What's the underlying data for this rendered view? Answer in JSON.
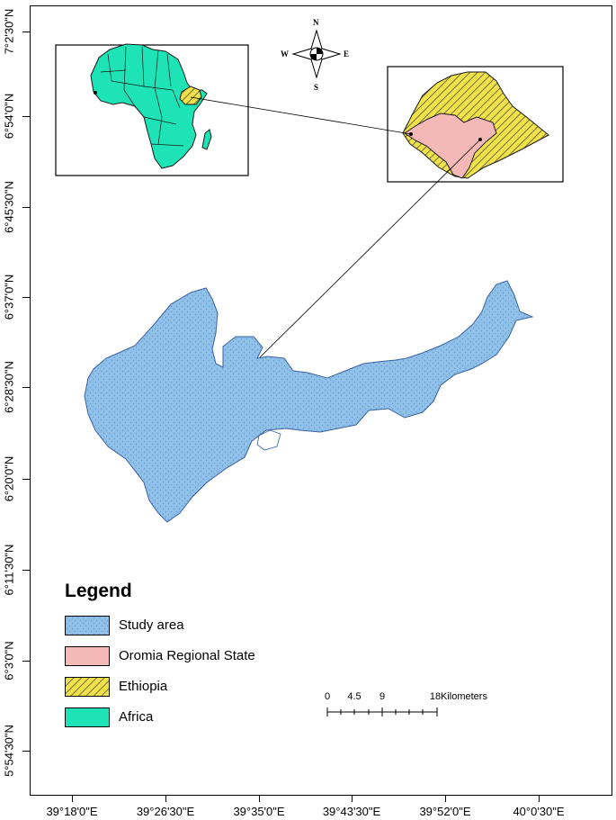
{
  "map": {
    "y_axis_labels": [
      "7°2'30\"N",
      "6°54'0\"N",
      "6°45'30\"N",
      "6°37'0\"N",
      "6°28'30\"N",
      "6°20'0\"N",
      "6°11'30\"N",
      "6°3'0\"N",
      "5°54'30\"N"
    ],
    "x_axis_labels": [
      "39°18'0\"E",
      "39°26'30\"E",
      "39°35'0\"E",
      "39°43'30\"E",
      "39°52'0\"E",
      "40°0'30\"E"
    ],
    "compass": {
      "n": "N",
      "s": "S",
      "e": "E",
      "w": "W"
    },
    "insets": [
      "Africa",
      "Ethiopia"
    ]
  },
  "legend": {
    "title": "Legend",
    "items": [
      {
        "label": "Study area",
        "color": "#8fc0ea",
        "pattern": "stipple"
      },
      {
        "label": "Oromia Regional State",
        "color": "#f4b9b7",
        "pattern": "solid"
      },
      {
        "label": "Ethiopia",
        "color": "#f2e24a",
        "pattern": "hatch"
      },
      {
        "label": "Africa",
        "color": "#1de3b6",
        "pattern": "solid"
      }
    ]
  },
  "scalebar": {
    "ticks": [
      "0",
      "4.5",
      "9",
      "18"
    ],
    "unit": "Kilometers"
  },
  "colors": {
    "study_area": "#8fc0ea",
    "oromia": "#f4b9b7",
    "ethiopia": "#f2e24a",
    "africa": "#1de3b6"
  }
}
